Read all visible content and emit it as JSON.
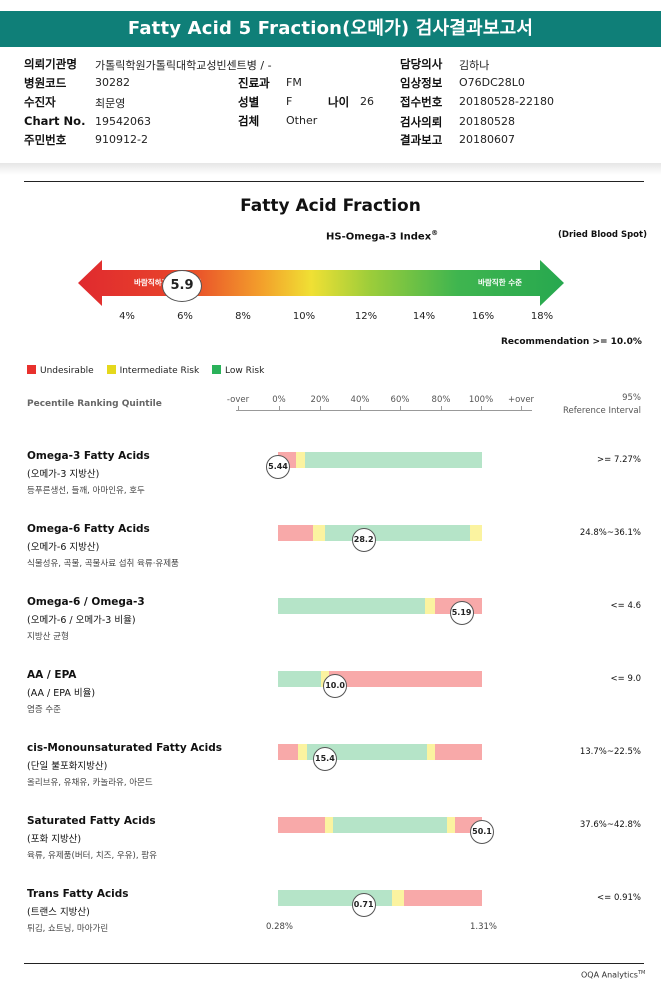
{
  "report": {
    "title": "Fatty Acid 5 Fraction(오메가) 검사결과보고서"
  },
  "patient": {
    "institution_label": "의뢰기관명",
    "institution_value": "가톨릭학원가톨릭대학교성빈센트병 / -",
    "hospital_code_label": "병원코드",
    "hospital_code_value": "30282",
    "patient_label": "수진자",
    "patient_value": "최문영",
    "chart_label": "Chart No.",
    "chart_value": "19542063",
    "resident_label": "주민번호",
    "resident_value": "910912-2",
    "dept_label": "진료과",
    "dept_value": "FM",
    "sex_label": "성별",
    "sex_value": "F",
    "age_label": "나이",
    "age_value": "26",
    "specimen_label": "검체",
    "specimen_value": "Other",
    "doctor_label": "담당의사",
    "doctor_value": "김하나",
    "request_info_label": "임상정보",
    "request_info_value": "O76DC28L0",
    "receipt_label": "접수번호",
    "receipt_value": "20180528-22180",
    "test_date_label": "검사의뢰",
    "test_date_value": "20180528",
    "report_date_label": "결과보고",
    "report_date_value": "20180607"
  },
  "index": {
    "chart_title": "Fatty Acid Fraction",
    "index_title": "HS-Omega-3 Index",
    "index_title_mark": "®",
    "sample_type": "(Dried Blood Spot)",
    "left_label": "바람직하지 않은 수준",
    "right_label": "바람직한 수준",
    "value_text": "5.9",
    "value": 5.9,
    "scale": [
      "4%",
      "6%",
      "8%",
      "10%",
      "12%",
      "14%",
      "16%",
      "18%"
    ],
    "recommendation": "Recommendation  >= 10.0%"
  },
  "legend": {
    "undesirable": "Undesirable",
    "intermediate": "Intermediate Risk",
    "low": "Low Risk"
  },
  "colors": {
    "red": "#f8a9a9",
    "yellow": "#fbf3a0",
    "green": "#b5e4c8",
    "legend_red": "#e8312d",
    "legend_yellow": "#e5d81c",
    "legend_green": "#2ab25a",
    "header": "#0f7f78"
  },
  "percentile": {
    "heading": "Pecentile Ranking Quintile",
    "scale": [
      "-over",
      "0%",
      "20%",
      "40%",
      "60%",
      "80%",
      "100%",
      "+over"
    ],
    "ref_heading_1": "95%",
    "ref_heading_2": "Reference Interval"
  },
  "rows": [
    {
      "name": "Omega-3 Fatty Acids",
      "sub": "(오메가-3 지방산)",
      "desc": "등푸른생선, 들깨, 아마인유, 호두",
      "ref": ">= 7.27%",
      "marker_text": "5.44",
      "marker": 0,
      "segments": [
        "red:0:9",
        "yellow:9:13",
        "green:13:100"
      ]
    },
    {
      "name": "Omega-6 Fatty Acids",
      "sub": "(오메가-6 지방산)",
      "desc": "식물성유, 곡물, 곡물사료 섭취 육류·유제품",
      "ref": "24.8%~36.1%",
      "marker_text": "28.2",
      "marker": 42,
      "segments": [
        "red:0:17",
        "yellow:17:23",
        "green:23:94",
        "yellow:94:100"
      ]
    },
    {
      "name": "Omega-6 / Omega-3",
      "sub": "(오메가-6 / 오메가-3 비율)",
      "desc": "지방산 균형",
      "ref": "<= 4.6",
      "marker_text": "5.19",
      "marker": 90,
      "segments": [
        "green:0:72",
        "yellow:72:77",
        "red:77:100"
      ]
    },
    {
      "name": "AA / EPA",
      "sub": "(AA / EPA 비율)",
      "desc": "염증 수준",
      "ref": "<= 9.0",
      "marker_text": "10.0",
      "marker": 28,
      "segments": [
        "green:0:21",
        "yellow:21:25",
        "red:25:100"
      ]
    },
    {
      "name": "cis-Monounsaturated Fatty Acids",
      "sub": "(단일 불포화지방산)",
      "desc": "올리브유, 유채유, 카놀라유, 아몬드",
      "ref": "13.7%~22.5%",
      "marker_text": "15.4",
      "marker": 23,
      "segments": [
        "red:0:10",
        "yellow:10:14",
        "green:14:73",
        "yellow:73:77",
        "red:77:100"
      ]
    },
    {
      "name": "Saturated Fatty Acids",
      "sub": "(포화 지방산)",
      "desc": "육류, 유제품(버터, 치즈, 우유), 팜유",
      "ref": "37.6%~42.8%",
      "marker_text": "50.1",
      "marker": 100,
      "segments": [
        "red:0:23",
        "yellow:23:27",
        "green:27:83",
        "yellow:83:87",
        "red:87:100"
      ]
    },
    {
      "name": "Trans Fatty Acids",
      "sub": "(트랜스 지방산)",
      "desc": "튀김, 쇼트닝, 마아가린",
      "ref": "<= 0.91%",
      "marker_text": "0.71",
      "marker": 42,
      "segments": [
        "green:0:56",
        "yellow:56:62",
        "red:62:100"
      ]
    }
  ],
  "trans_scale": {
    "min": "0.28%",
    "max": "1.31%"
  },
  "footer": {
    "brand": "OQA Analytics",
    "mark": "TM"
  }
}
